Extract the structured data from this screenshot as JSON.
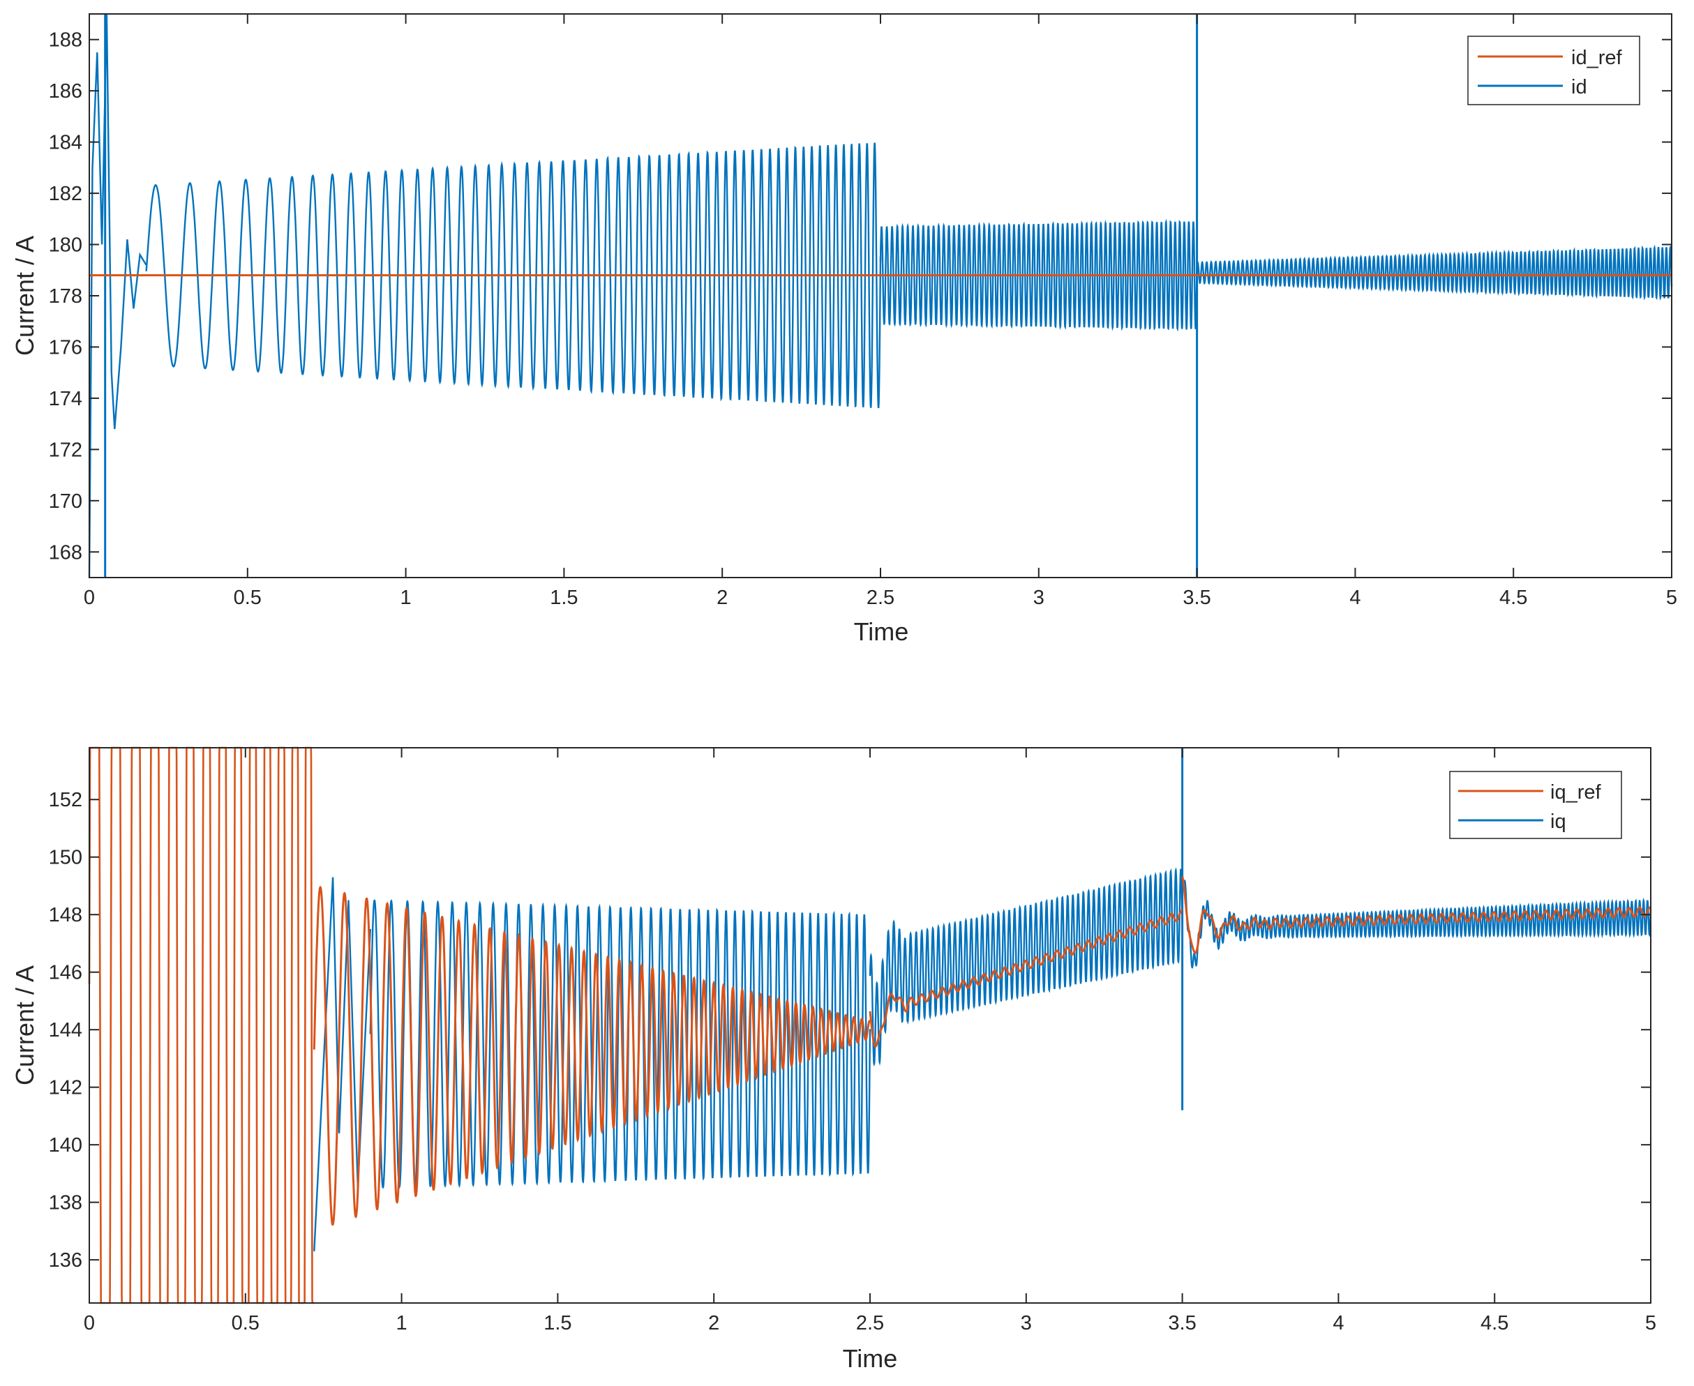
{
  "chart_data": [
    {
      "type": "line",
      "xlabel": "Time",
      "ylabel": "Current / A",
      "xlim": [
        0,
        5
      ],
      "ylim": [
        167,
        189
      ],
      "xticks": [
        "0",
        "0.5",
        "1",
        "1.5",
        "2",
        "2.5",
        "3",
        "3.5",
        "4",
        "4.5",
        "5"
      ],
      "yticks": [
        "168",
        "170",
        "172",
        "174",
        "176",
        "178",
        "180",
        "182",
        "184",
        "186",
        "188"
      ],
      "grid": false,
      "legend_position": "top-right",
      "series": [
        {
          "name": "id_ref",
          "color": "#d95319",
          "description": "constant reference",
          "value": 178.8
        },
        {
          "name": "id",
          "color": "#0072bd",
          "segments": [
            {
              "t_start": 0.0,
              "t_end": 2.5,
              "center": 178.8,
              "amp_start": 3.5,
              "amp_end": 5.2,
              "freq_start": 8,
              "freq_end": 42
            },
            {
              "t_start": 2.5,
              "t_end": 3.5,
              "center": 178.8,
              "amp_start": 1.9,
              "amp_end": 2.1,
              "freq_start": 60,
              "freq_end": 70
            },
            {
              "t_start": 3.5,
              "t_end": 5.0,
              "center": 178.9,
              "amp_start": 0.4,
              "amp_end": 1.0,
              "freq_start": 70,
              "freq_end": 80
            }
          ],
          "spikes": [
            {
              "t": 0.05,
              "min": 167,
              "max": 189
            },
            {
              "t": 3.5,
              "min": 167,
              "max": 189
            }
          ]
        }
      ]
    },
    {
      "type": "line",
      "xlabel": "Time",
      "ylabel": "Current / A",
      "xlim": [
        0,
        5
      ],
      "ylim": [
        134.5,
        153.8
      ],
      "xticks": [
        "0",
        "0.5",
        "1",
        "1.5",
        "2",
        "2.5",
        "3",
        "3.5",
        "4",
        "4.5",
        "5"
      ],
      "yticks": [
        "136",
        "138",
        "140",
        "142",
        "144",
        "146",
        "148",
        "150",
        "152"
      ],
      "grid": false,
      "legend_position": "top-right",
      "series": [
        {
          "name": "iq_ref",
          "color": "#d95319",
          "segments": [
            {
              "t_start": 0.0,
              "t_end": 0.72,
              "description": "saturated oscillation beyond axis limits"
            },
            {
              "t_start": 0.72,
              "t_end": 2.5,
              "center_start": 143.0,
              "center_end": 144.0,
              "amp_start": 6.0,
              "amp_end": 0.3
            },
            {
              "t_start": 2.5,
              "t_end": 3.5,
              "center_start": 144.5,
              "center_end": 148.0
            },
            {
              "t_start": 3.5,
              "t_end": 5.0,
              "center_start": 147.6,
              "center_end": 148.1
            }
          ]
        },
        {
          "name": "iq",
          "color": "#0072bd",
          "segments": [
            {
              "t_start": 0.72,
              "t_end": 2.5,
              "center": 143.5,
              "amp_start": 5.0,
              "amp_end": 4.5
            },
            {
              "t_start": 2.5,
              "t_end": 3.5,
              "center_start": 145.5,
              "center_end": 148.0,
              "amp_start": 1.5,
              "amp_end": 1.6
            },
            {
              "t_start": 3.5,
              "t_end": 5.0,
              "center_start": 147.5,
              "center_end": 147.9,
              "amp_start": 0.3,
              "amp_end": 0.6
            }
          ],
          "spikes": [
            {
              "t": 3.5,
              "min": 141.2,
              "max": 153.8
            }
          ]
        }
      ]
    }
  ],
  "legend1": {
    "item1": "id_ref",
    "item2": "id"
  },
  "legend2": {
    "item1": "iq_ref",
    "item2": "iq"
  },
  "top": {
    "xlabel": "Time",
    "ylabel": "Current / A"
  },
  "bottom": {
    "xlabel": "Time",
    "ylabel": "Current / A"
  },
  "colors": {
    "ref": "#d95319",
    "meas": "#0072bd",
    "axis": "#262626"
  }
}
